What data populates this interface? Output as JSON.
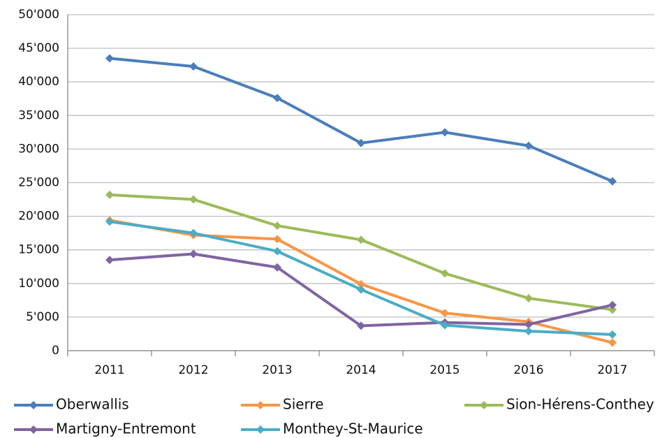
{
  "chart_data": {
    "type": "line",
    "categories": [
      "2011",
      "2012",
      "2013",
      "2014",
      "2015",
      "2016",
      "2017"
    ],
    "series": [
      {
        "name": "Oberwallis",
        "color": "#4a7ebb",
        "values": [
          43500,
          42300,
          37600,
          30900,
          32500,
          30500,
          25200
        ]
      },
      {
        "name": "Sierre",
        "color": "#f79646",
        "values": [
          19400,
          17200,
          16600,
          9900,
          5600,
          4300,
          1200
        ]
      },
      {
        "name": "Sion-Hérens-Conthey",
        "color": "#9bbb59",
        "values": [
          23200,
          22500,
          18600,
          16500,
          11500,
          7800,
          6100
        ]
      },
      {
        "name": "Martigny-Entremont",
        "color": "#8064a2",
        "values": [
          13500,
          14400,
          12400,
          3700,
          4200,
          3900,
          6800
        ]
      },
      {
        "name": "Monthey-St-Maurice",
        "color": "#4bacc6",
        "values": [
          19200,
          17500,
          14800,
          9100,
          3800,
          2900,
          2400
        ]
      }
    ],
    "ylim": [
      0,
      50000
    ],
    "yticks": [
      0,
      {
        "value": 5000,
        "label": "5'000"
      },
      {
        "value": 10000,
        "label": "10'000"
      },
      {
        "value": 15000,
        "label": "15'000"
      },
      {
        "value": 20000,
        "label": "20'000"
      },
      {
        "value": 25000,
        "label": "25'000"
      },
      {
        "value": 30000,
        "label": "30'000"
      },
      {
        "value": 35000,
        "label": "35'000"
      },
      {
        "value": 40000,
        "label": "40'000"
      },
      {
        "value": 45000,
        "label": "45'000"
      },
      {
        "value": 50000,
        "label": "50'000"
      }
    ],
    "grid": true,
    "legend": "bottom"
  }
}
